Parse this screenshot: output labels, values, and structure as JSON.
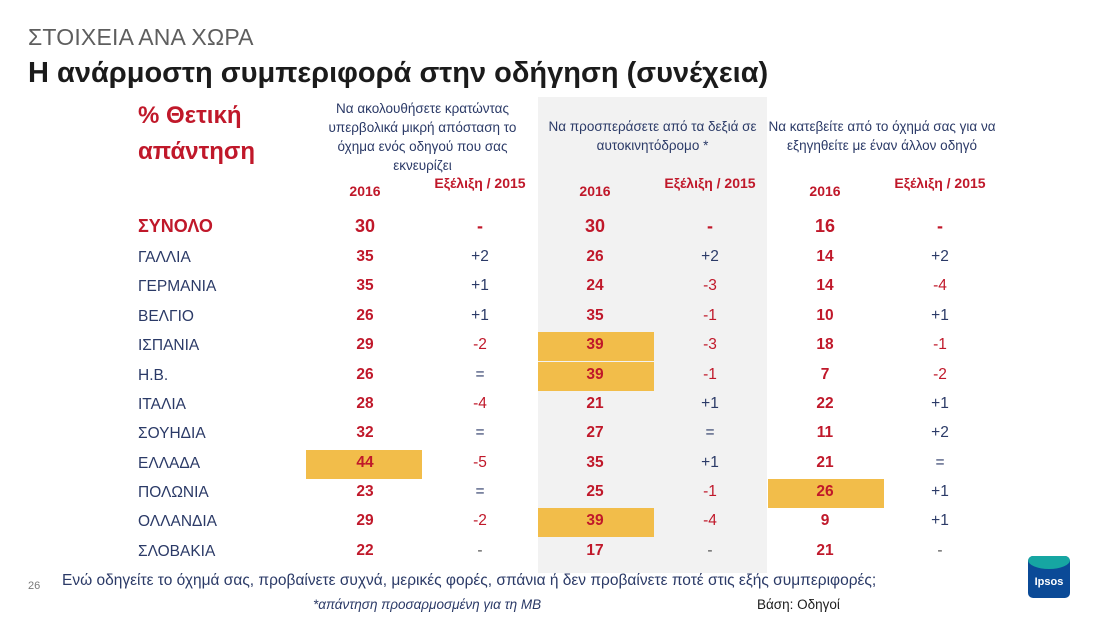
{
  "header": {
    "subtitle": "ΣΤΟΙΧΕΙΑ ΑΝΑ ΧΩΡΑ",
    "title": "Η ανάρμοστη συμπεριφορά στην οδήγηση (συνέχεια)",
    "positive_label": "% Θετική απάντηση"
  },
  "columns": [
    {
      "question": "Να ακολουθήσετε κρατώντας υπερβολικά μικρή απόσταση το όχημα ενός οδηγού που σας εκνευρίζει",
      "year_label": "2016",
      "change_label": "Εξέλιξη / 2015"
    },
    {
      "question": "Να προσπεράσετε από τα δεξιά σε αυτοκινητόδρομο *",
      "year_label": "2016",
      "change_label": "Εξέλιξη / 2015"
    },
    {
      "question": "Να κατεβείτε από το όχημά σας για να εξηγηθείτε με έναν άλλον οδηγό",
      "year_label": "2016",
      "change_label": "Εξέλιξη / 2015"
    }
  ],
  "rows": [
    {
      "country": "ΣΥΝΟΛΟ",
      "total": true,
      "values": [
        "30",
        "-",
        "30",
        "-",
        "16",
        "-"
      ],
      "highlight": [
        false,
        false,
        false
      ]
    },
    {
      "country": "ΓΑΛΛΙΑ",
      "values": [
        "35",
        "+2",
        "26",
        "+2",
        "14",
        "+2"
      ],
      "highlight": [
        false,
        false,
        false
      ]
    },
    {
      "country": "ΓΕΡΜΑΝΙΑ",
      "values": [
        "35",
        "+1",
        "24",
        "-3",
        "14",
        "-4"
      ],
      "highlight": [
        false,
        false,
        false
      ]
    },
    {
      "country": "ΒΕΛΓΙΟ",
      "values": [
        "26",
        "+1",
        "35",
        "-1",
        "10",
        "+1"
      ],
      "highlight": [
        false,
        false,
        false
      ]
    },
    {
      "country": "ΙΣΠΑΝΙΑ",
      "values": [
        "29",
        "-2",
        "39",
        "-3",
        "18",
        "-1"
      ],
      "highlight": [
        false,
        true,
        false
      ]
    },
    {
      "country": "Η.Β.",
      "values": [
        "26",
        "=",
        "39",
        "-1",
        "7",
        "-2"
      ],
      "highlight": [
        false,
        true,
        false
      ]
    },
    {
      "country": "ΙΤΑΛΙΑ",
      "values": [
        "28",
        "-4",
        "21",
        "+1",
        "22",
        "+1"
      ],
      "highlight": [
        false,
        false,
        false
      ]
    },
    {
      "country": "ΣΟΥΗΔΙΑ",
      "values": [
        "32",
        "=",
        "27",
        "=",
        "11",
        "+2"
      ],
      "highlight": [
        false,
        false,
        false
      ]
    },
    {
      "country": "ΕΛΛΑΔΑ",
      "values": [
        "44",
        "-5",
        "35",
        "+1",
        "21",
        "="
      ],
      "highlight": [
        true,
        false,
        false
      ]
    },
    {
      "country": "ΠΟΛΩΝΙΑ",
      "values": [
        "23",
        "=",
        "25",
        "-1",
        "26",
        "+1"
      ],
      "highlight": [
        false,
        false,
        true
      ]
    },
    {
      "country": "ΟΛΛΑΝΔΙΑ",
      "values": [
        "29",
        "-2",
        "39",
        "-4",
        "9",
        "+1"
      ],
      "highlight": [
        false,
        true,
        false
      ]
    },
    {
      "country": "ΣΛΟΒΑΚΙΑ",
      "values": [
        "22",
        "-",
        "17",
        "-",
        "21",
        "-"
      ],
      "highlight": [
        false,
        false,
        false
      ]
    }
  ],
  "footer": {
    "page_number": "26",
    "question": "Ενώ οδηγείτε το όχημά σας, προβαίνετε συχνά, μερικές φορές, σπάνια ή δεν προβαίνετε ποτέ στις εξής συμπεριφορές;",
    "footnote": "*απάντηση προσαρμοσμένη για τη ΜΒ",
    "base": "Βάση: Οδηγοί",
    "logo": "Ipsos"
  },
  "colors": {
    "accent_red": "#c0182a",
    "navy": "#2b3a67",
    "highlight": "#f2bd4a",
    "band": "#f2f2f2"
  }
}
